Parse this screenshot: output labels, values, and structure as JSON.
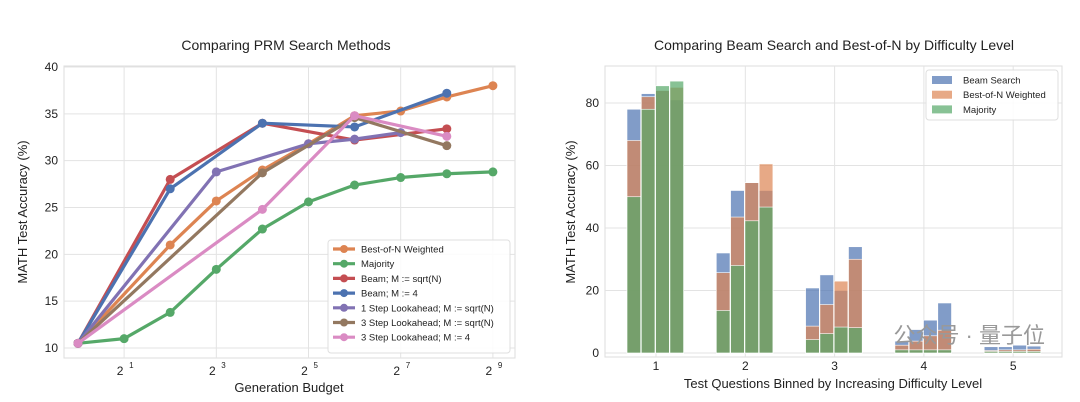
{
  "chart_data": [
    {
      "type": "line",
      "title": "Comparing PRM Search Methods",
      "xlabel": "Generation Budget",
      "ylabel": "MATH Test Accuracy (%)",
      "x_scale": "log2",
      "xlim": [
        0.5,
        512
      ],
      "ylim": [
        10,
        40
      ],
      "xticks": [
        {
          "base": "2",
          "exp": "1",
          "v": 2
        },
        {
          "base": "2",
          "exp": "3",
          "v": 8
        },
        {
          "base": "2",
          "exp": "5",
          "v": 32
        },
        {
          "base": "2",
          "exp": "7",
          "v": 128
        },
        {
          "base": "2",
          "exp": "9",
          "v": 512
        }
      ],
      "yticks": [
        10,
        15,
        20,
        25,
        30,
        35,
        40
      ],
      "grid": true,
      "legend_position": "bottom-right",
      "series": [
        {
          "name": "Best-of-N Weighted",
          "color": "#dd8452",
          "x": [
            1,
            4,
            8,
            16,
            32,
            64,
            128,
            256,
            512
          ],
          "y": [
            10.5,
            21,
            25.7,
            29,
            31.8,
            34.8,
            35.3,
            36.8,
            38
          ]
        },
        {
          "name": "Majority",
          "color": "#55a868",
          "x": [
            1,
            2,
            4,
            8,
            16,
            32,
            64,
            128,
            256,
            512
          ],
          "y": [
            10.5,
            11,
            13.8,
            18.4,
            22.7,
            25.6,
            27.4,
            28.2,
            28.6,
            28.8
          ]
        },
        {
          "name": "Beam; M := sqrt(N)",
          "color": "#c44e52",
          "x": [
            1,
            4,
            16,
            64,
            256
          ],
          "y": [
            10.5,
            28,
            34,
            32.2,
            33.4
          ]
        },
        {
          "name": "Beam; M := 4",
          "color": "#4c72b0",
          "x": [
            1,
            4,
            16,
            64,
            256
          ],
          "y": [
            10.5,
            27,
            34,
            33.6,
            37.2
          ]
        },
        {
          "name": "1 Step Lookahead; M := sqrt(N)",
          "color": "#8172b3",
          "x": [
            1,
            8,
            32,
            64,
            128
          ],
          "y": [
            10.5,
            28.8,
            31.8,
            32.3,
            33
          ]
        },
        {
          "name": "3 Step Lookahead; M := sqrt(N)",
          "color": "#937860",
          "x": [
            1,
            16,
            64,
            256
          ],
          "y": [
            10.5,
            28.7,
            34.6,
            31.6
          ]
        },
        {
          "name": "3 Step Lookahead; M := 4",
          "color": "#da8bc3",
          "x": [
            1,
            16,
            64,
            256
          ],
          "y": [
            10.5,
            24.8,
            34.8,
            32.6
          ]
        }
      ]
    },
    {
      "type": "bar",
      "title": "Comparing Beam Search and Best-of-N by Difficulty Level",
      "xlabel": "Test Questions Binned by Increasing Difficulty Level",
      "ylabel": "MATH Test Accuracy (%)",
      "categories": [
        "1",
        "2",
        "3",
        "4",
        "5"
      ],
      "ylim": [
        0,
        90
      ],
      "yticks": [
        0,
        20,
        40,
        60,
        80
      ],
      "grid": true,
      "legend_position": "top-right",
      "overlaid": true,
      "series": [
        {
          "name": "Beam Search",
          "color": "#4c72b0",
          "values": [
            [
              78,
              83,
              84,
              81
            ],
            [
              32,
              52,
              54.5,
              52
            ],
            [
              20.8,
              25,
              20,
              34
            ],
            [
              3.8,
              7.5,
              10.5,
              16
            ],
            [
              2,
              2,
              2.5,
              2.2
            ]
          ]
        },
        {
          "name": "Best-of-N Weighted",
          "color": "#dd8452",
          "values": [
            [
              68,
              82,
              84,
              85
            ],
            [
              25.7,
              43.5,
              54.5,
              60.5
            ],
            [
              8.6,
              15.5,
              23,
              30
            ],
            [
              2.5,
              3.8,
              5.5,
              7.3
            ],
            [
              0.8,
              1,
              1,
              1.2
            ]
          ]
        },
        {
          "name": "Majority",
          "color": "#55a868",
          "values": [
            [
              50,
              78,
              85.5,
              87
            ],
            [
              13.6,
              28,
              42.3,
              46.7
            ],
            [
              4.3,
              6.2,
              8.3,
              8.1
            ],
            [
              1,
              1,
              1,
              1
            ],
            [
              0.5,
              0.5,
              0.5,
              0.5
            ]
          ]
        }
      ]
    }
  ],
  "watermark": "公众号 · 量子位"
}
